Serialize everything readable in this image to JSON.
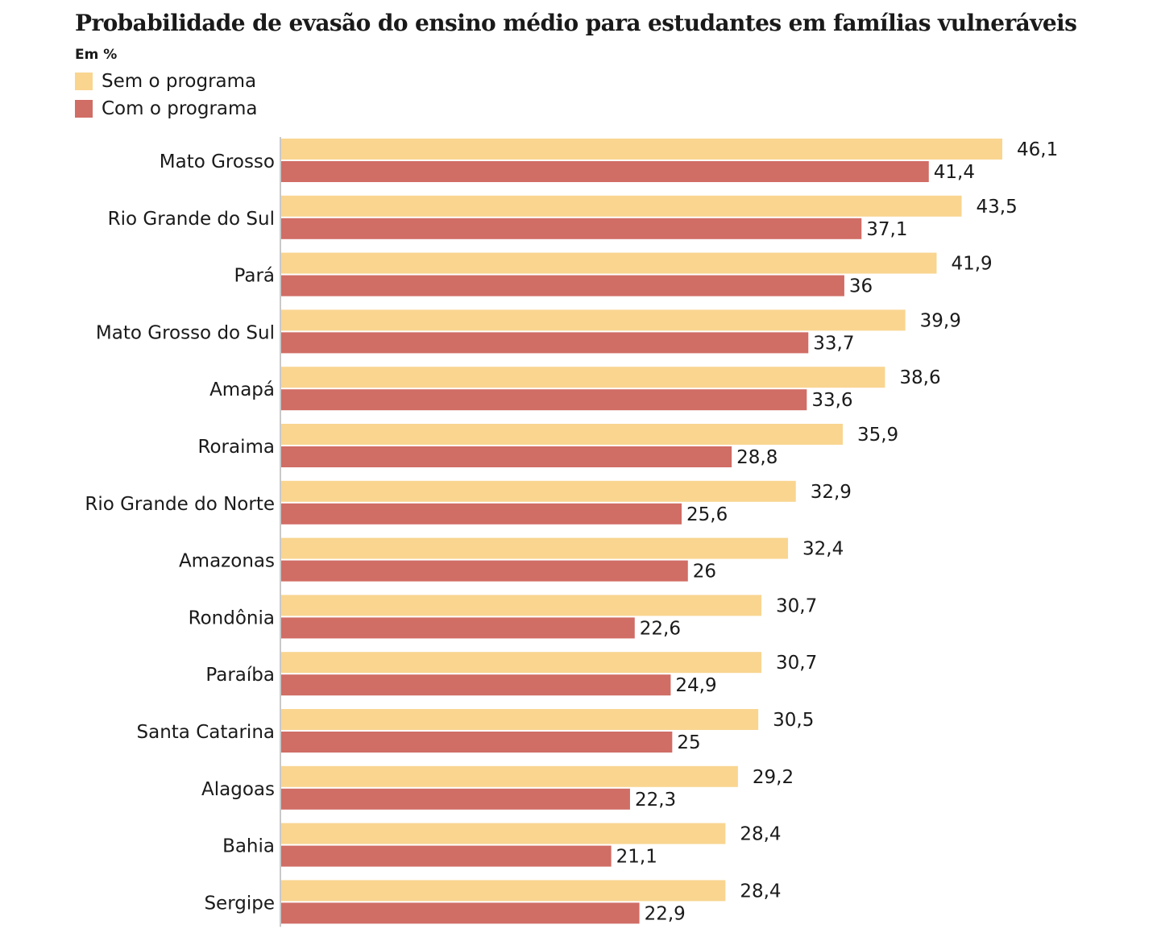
{
  "title": "Probabilidade de evasão do ensino médio para estudantes em famílias vulneráveis",
  "unit_label": "Em %",
  "colors": {
    "sem": "#f9d590",
    "com": "#d06d65",
    "axis": "#c9c9c9"
  },
  "chart_data": {
    "type": "bar",
    "orientation": "horizontal",
    "title": "Probabilidade de evasão do ensino médio para estudantes em famílias vulneráveis",
    "subtitle": "Em %",
    "legend_placement": "top-left",
    "grid": false,
    "xlim": [
      0,
      46.1
    ],
    "categories": [
      "Mato Grosso",
      "Rio Grande do Sul",
      "Pará",
      "Mato Grosso do Sul",
      "Amapá",
      "Roraima",
      "Rio Grande do Norte",
      "Amazonas",
      "Rondônia",
      "Paraíba",
      "Santa Catarina",
      "Alagoas",
      "Bahia",
      "Sergipe"
    ],
    "series": [
      {
        "name": "Sem o programa",
        "color": "#f9d590",
        "values": [
          46.1,
          43.5,
          41.9,
          39.9,
          38.6,
          35.9,
          32.9,
          32.4,
          30.7,
          30.7,
          30.5,
          29.2,
          28.4,
          28.4
        ],
        "labels": [
          "46,1",
          "43,5",
          "41,9",
          "39,9",
          "38,6",
          "35,9",
          "32,9",
          "32,4",
          "30,7",
          "30,7",
          "30,5",
          "29,2",
          "28,4",
          "28,4"
        ]
      },
      {
        "name": "Com o programa",
        "color": "#d06d65",
        "values": [
          41.4,
          37.1,
          36,
          33.7,
          33.6,
          28.8,
          25.6,
          26,
          22.6,
          24.9,
          25,
          22.3,
          21.1,
          22.9
        ],
        "labels": [
          "41,4",
          "37,1",
          "36",
          "33,7",
          "33,6",
          "28,8",
          "25,6",
          "26",
          "22,6",
          "24,9",
          "25",
          "22,3",
          "21,1",
          "22,9"
        ]
      }
    ]
  }
}
